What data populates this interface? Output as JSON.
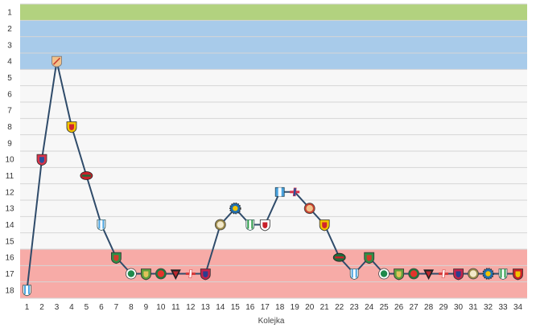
{
  "chart_data": {
    "type": "line",
    "xlabel": "Kolejka",
    "ylabel": "",
    "x": [
      1,
      2,
      3,
      4,
      5,
      6,
      7,
      8,
      9,
      10,
      11,
      12,
      13,
      14,
      15,
      16,
      17,
      18,
      19,
      20,
      21,
      22,
      23,
      24,
      25,
      26,
      27,
      28,
      29,
      30,
      31,
      32,
      33,
      34
    ],
    "y_ticks": [
      1,
      2,
      3,
      4,
      5,
      6,
      7,
      8,
      9,
      10,
      11,
      12,
      13,
      14,
      15,
      16,
      17,
      18
    ],
    "ylim": [
      1,
      18
    ],
    "y_inverted": true,
    "grid": true,
    "zones": [
      {
        "from": 1,
        "to": 1,
        "color": "#b2d27f"
      },
      {
        "from": 2,
        "to": 4,
        "color": "#a8cbea"
      },
      {
        "from": 5,
        "to": 15,
        "color": "#f7f7f7"
      },
      {
        "from": 16,
        "to": 18,
        "color": "#f7aba7"
      }
    ],
    "series": [
      {
        "values": [
          18,
          10,
          4,
          8,
          11,
          14,
          16,
          17,
          17,
          17,
          17,
          17,
          17,
          14,
          13,
          14,
          14,
          12,
          12,
          13,
          14,
          16,
          17,
          16,
          17,
          17,
          17,
          17,
          17,
          17,
          17,
          17,
          17,
          17
        ],
        "color": "#2f4b6a"
      }
    ],
    "markers": [
      {
        "primary": "#4aa3df",
        "secondary": "#ffffff",
        "icon": "stripes-crest-icon"
      },
      {
        "primary": "#d9344a",
        "secondary": "#2a4f9b",
        "icon": "shield-crest-icon"
      },
      {
        "primary": "#f2c28a",
        "secondary": "#c94030",
        "icon": "sword-crest-icon"
      },
      {
        "primary": "#f2c400",
        "secondary": "#d1252d",
        "icon": "shield-crest-icon"
      },
      {
        "primary": "#c8202a",
        "secondary": "#1f6b3a",
        "icon": "oval-crest-icon"
      },
      {
        "primary": "#4aa3df",
        "secondary": "#ffffff",
        "icon": "stripes-crest-icon"
      },
      {
        "primary": "#2f8f46",
        "secondary": "#d13b2c",
        "icon": "shield-crest-icon"
      },
      {
        "primary": "#1f8a4c",
        "secondary": "#ffffff",
        "icon": "round-crest-icon"
      },
      {
        "primary": "#5f9f3e",
        "secondary": "#e2c25a",
        "icon": "shield-crest-icon"
      },
      {
        "primary": "#e3342c",
        "secondary": "#1f7a3c",
        "icon": "round-crest-icon"
      },
      {
        "primary": "#c0282d",
        "secondary": "#222222",
        "icon": "pennant-crest-icon"
      },
      {
        "primary": "#d63b3b",
        "secondary": "#ffffff",
        "icon": "dash-crest-icon"
      },
      {
        "primary": "#c3234b",
        "secondary": "#2c3d8f",
        "icon": "shield-crest-icon"
      },
      {
        "primary": "#f3e8c9",
        "secondary": "#9b8a4a",
        "icon": "round-crest-icon"
      },
      {
        "primary": "#1f6fb0",
        "secondary": "#f2c400",
        "icon": "gear-crest-icon"
      },
      {
        "primary": "#2e9b4a",
        "secondary": "#ffffff",
        "icon": "stripes-crest-icon"
      },
      {
        "primary": "#ffffff",
        "secondary": "#c8202a",
        "icon": "shield-crest-icon"
      },
      {
        "primary": "#4aa3df",
        "secondary": "#ffffff",
        "icon": "tower-crest-icon"
      },
      {
        "primary": "#d9344a",
        "secondary": "#2a4f9b",
        "icon": "dash-crest-icon"
      },
      {
        "primary": "#f2c28a",
        "secondary": "#c94030",
        "icon": "round-crest-icon"
      },
      {
        "primary": "#f2c400",
        "secondary": "#d1252d",
        "icon": "shield-crest-icon"
      },
      {
        "primary": "#1f6b3a",
        "secondary": "#c8202a",
        "icon": "oval-crest-icon"
      },
      {
        "primary": "#4aa3df",
        "secondary": "#ffffff",
        "icon": "stripes-crest-icon"
      },
      {
        "primary": "#2f8f46",
        "secondary": "#d13b2c",
        "icon": "shield-crest-icon"
      },
      {
        "primary": "#1f8a4c",
        "secondary": "#ffffff",
        "icon": "round-crest-icon"
      },
      {
        "primary": "#5f9f3e",
        "secondary": "#e2c25a",
        "icon": "shield-crest-icon"
      },
      {
        "primary": "#e3342c",
        "secondary": "#1f7a3c",
        "icon": "round-crest-icon"
      },
      {
        "primary": "#c0282d",
        "secondary": "#222222",
        "icon": "pennant-crest-icon"
      },
      {
        "primary": "#d63b3b",
        "secondary": "#ffffff",
        "icon": "dash-crest-icon"
      },
      {
        "primary": "#c3234b",
        "secondary": "#2c3d8f",
        "icon": "shield-crest-icon"
      },
      {
        "primary": "#f3e8c9",
        "secondary": "#9b8a4a",
        "icon": "round-crest-icon"
      },
      {
        "primary": "#1f6fb0",
        "secondary": "#f2c400",
        "icon": "gear-crest-icon"
      },
      {
        "primary": "#2e9b4a",
        "secondary": "#ffffff",
        "icon": "stripes-crest-icon"
      },
      {
        "primary": "#c8202a",
        "secondary": "#f2c400",
        "icon": "shield-crest-icon"
      }
    ]
  }
}
